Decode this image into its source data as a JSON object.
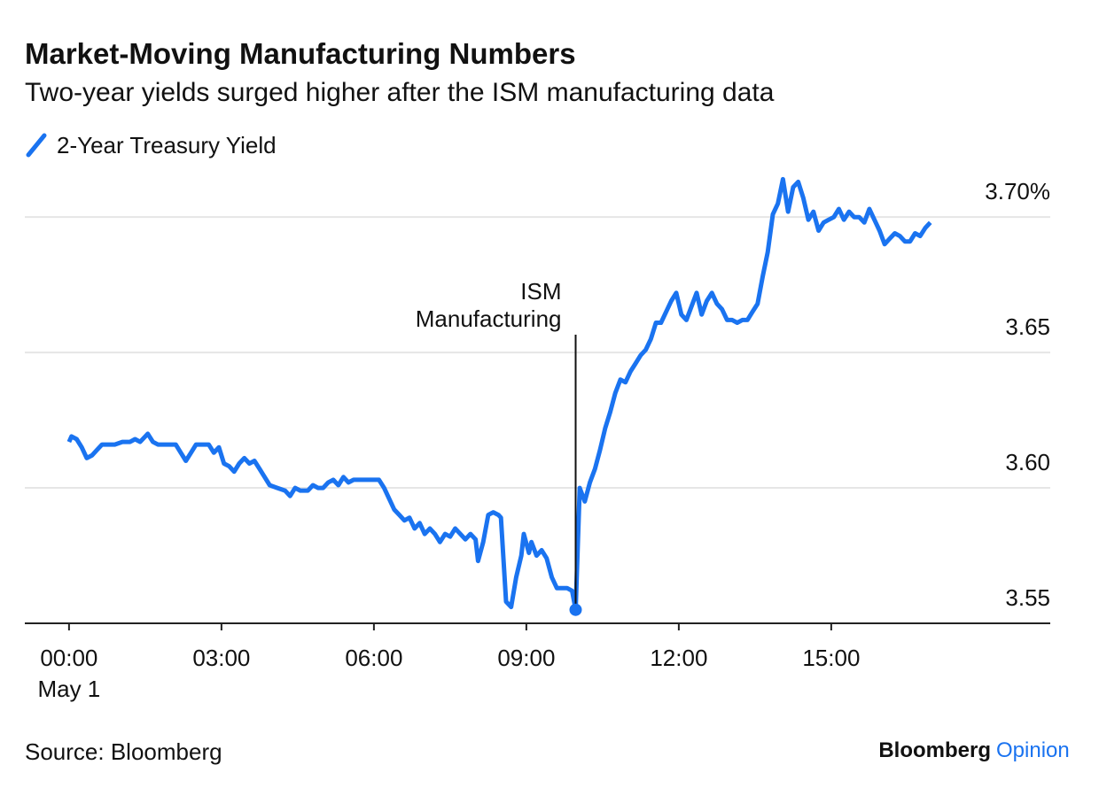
{
  "chart_data": {
    "type": "line",
    "title": "Market-Moving Manufacturing Numbers",
    "subtitle": "Two-year yields surged higher after the ISM manufacturing data",
    "source": "Source: Bloomberg",
    "brand": [
      "Bloomberg",
      "Opinion"
    ],
    "x_date_label": "May 1",
    "xlim": [
      -0.87,
      19.31
    ],
    "xticks": [
      {
        "value": 0,
        "label": "00:00"
      },
      {
        "value": 3,
        "label": "03:00"
      },
      {
        "value": 6,
        "label": "06:00"
      },
      {
        "value": 9,
        "label": "09:00"
      },
      {
        "value": 12,
        "label": "12:00"
      },
      {
        "value": 15,
        "label": "15:00"
      }
    ],
    "ylim": [
      3.55,
      3.72
    ],
    "yticks": [
      3.55,
      {
        "value": 3.6,
        "label": "3.60"
      },
      3.65,
      {
        "value": 3.7,
        "label": "3.70%"
      }
    ],
    "grid": true,
    "annotation": {
      "lines": [
        "ISM",
        "Manufacturing"
      ],
      "x": 9.97
    },
    "x": [
      0,
      0.05,
      0.15,
      0.25,
      0.35,
      0.45,
      0.55,
      0.65,
      0.8,
      0.9,
      1.05,
      1.2,
      1.3,
      1.4,
      1.5,
      1.55,
      1.65,
      1.75,
      1.9,
      2.1,
      2.2,
      2.3,
      2.4,
      2.5,
      2.6,
      2.75,
      2.85,
      2.95,
      3.05,
      3.15,
      3.25,
      3.35,
      3.45,
      3.55,
      3.65,
      3.75,
      3.85,
      3.95,
      4.1,
      4.25,
      4.35,
      4.45,
      4.55,
      4.7,
      4.8,
      4.9,
      5.0,
      5.1,
      5.2,
      5.3,
      5.4,
      5.5,
      5.6,
      5.7,
      5.8,
      5.9,
      6.0,
      6.1,
      6.2,
      6.3,
      6.4,
      6.5,
      6.6,
      6.7,
      6.8,
      6.9,
      7.0,
      7.1,
      7.2,
      7.3,
      7.4,
      7.5,
      7.6,
      7.7,
      7.8,
      7.9,
      8.0,
      8.05,
      8.15,
      8.25,
      8.35,
      8.45,
      8.5,
      8.6,
      8.7,
      8.8,
      8.9,
      8.95,
      9.05,
      9.1,
      9.2,
      9.3,
      9.4,
      9.5,
      9.6,
      9.7,
      9.8,
      9.9,
      9.97,
      10.05,
      10.15,
      10.25,
      10.35,
      10.45,
      10.55,
      10.65,
      10.75,
      10.85,
      10.95,
      11.05,
      11.15,
      11.25,
      11.35,
      11.45,
      11.55,
      11.65,
      11.75,
      11.85,
      11.95,
      12.05,
      12.15,
      12.25,
      12.35,
      12.45,
      12.55,
      12.65,
      12.75,
      12.85,
      12.95,
      13.05,
      13.15,
      13.25,
      13.35,
      13.45,
      13.55,
      13.65,
      13.75,
      13.85,
      13.95,
      14.05,
      14.15,
      14.25,
      14.35,
      14.45,
      14.55,
      14.65,
      14.75,
      14.85,
      14.95,
      15.05,
      15.15,
      15.25,
      15.35,
      15.45,
      15.55,
      15.65,
      15.75,
      15.85,
      15.95,
      16.05,
      16.15,
      16.25,
      16.35,
      16.45,
      16.55,
      16.65,
      16.75,
      16.85,
      16.95
    ],
    "series": [
      {
        "name": "2-Year Treasury Yield",
        "color": "#1a73f0",
        "values": [
          3.617,
          3.619,
          3.618,
          3.615,
          3.611,
          3.612,
          3.614,
          3.616,
          3.616,
          3.616,
          3.617,
          3.617,
          3.618,
          3.617,
          3.619,
          3.62,
          3.617,
          3.616,
          3.616,
          3.616,
          3.613,
          3.61,
          3.613,
          3.616,
          3.616,
          3.616,
          3.613,
          3.615,
          3.609,
          3.608,
          3.606,
          3.609,
          3.611,
          3.609,
          3.61,
          3.607,
          3.604,
          3.601,
          3.6,
          3.599,
          3.597,
          3.6,
          3.599,
          3.599,
          3.601,
          3.6,
          3.6,
          3.602,
          3.603,
          3.601,
          3.604,
          3.602,
          3.603,
          3.603,
          3.603,
          3.603,
          3.603,
          3.603,
          3.6,
          3.596,
          3.592,
          3.59,
          3.588,
          3.589,
          3.585,
          3.587,
          3.583,
          3.585,
          3.583,
          3.58,
          3.583,
          3.582,
          3.585,
          3.583,
          3.581,
          3.583,
          3.581,
          3.573,
          3.58,
          3.59,
          3.591,
          3.59,
          3.589,
          3.558,
          3.556,
          3.567,
          3.575,
          3.583,
          3.576,
          3.58,
          3.575,
          3.577,
          3.574,
          3.567,
          3.563,
          3.563,
          3.563,
          3.562,
          3.555,
          3.6,
          3.595,
          3.602,
          3.607,
          3.614,
          3.622,
          3.628,
          3.635,
          3.64,
          3.639,
          3.643,
          3.646,
          3.649,
          3.651,
          3.655,
          3.661,
          3.661,
          3.665,
          3.669,
          3.672,
          3.664,
          3.662,
          3.667,
          3.672,
          3.664,
          3.669,
          3.672,
          3.668,
          3.666,
          3.662,
          3.662,
          3.661,
          3.662,
          3.662,
          3.665,
          3.668,
          3.678,
          3.687,
          3.701,
          3.705,
          3.714,
          3.702,
          3.711,
          3.713,
          3.707,
          3.699,
          3.702,
          3.695,
          3.698,
          3.699,
          3.7,
          3.703,
          3.699,
          3.702,
          3.7,
          3.7,
          3.698,
          3.703,
          3.699,
          3.695,
          3.69,
          3.692,
          3.694,
          3.693,
          3.691,
          3.691,
          3.694,
          3.693,
          3.696,
          3.698
        ]
      }
    ]
  }
}
